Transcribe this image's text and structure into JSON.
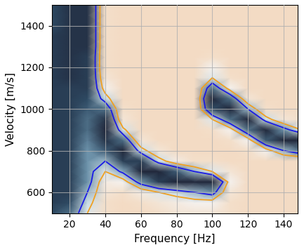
{
  "chart_data": {
    "type": "heatmap",
    "x_label": "Frequency [Hz]",
    "y_label": "Velocity [m/s]",
    "x": [
      10,
      20,
      30,
      40,
      50,
      60,
      70,
      80,
      90,
      100,
      110,
      120,
      130,
      140,
      150
    ],
    "y": [
      500,
      550,
      600,
      650,
      700,
      750,
      800,
      850,
      900,
      950,
      1000,
      1050,
      1100,
      1150,
      1200,
      1250,
      1300,
      1350,
      1400,
      1450,
      1500
    ],
    "cells": [
      [
        0.8,
        0.7,
        0.3,
        0.05,
        0.02,
        0.02,
        0.05,
        0.1,
        0.1,
        0.1,
        0.05,
        0.02,
        0.02,
        0.02,
        0.02
      ],
      [
        0.85,
        0.8,
        0.4,
        0.05,
        0.02,
        0.05,
        0.1,
        0.15,
        0.2,
        0.2,
        0.05,
        0.02,
        0.02,
        0.02,
        0.02
      ],
      [
        0.85,
        0.85,
        0.5,
        0.1,
        0.05,
        0.15,
        0.3,
        0.4,
        0.5,
        0.6,
        0.1,
        0.02,
        0.02,
        0.02,
        0.02
      ],
      [
        0.85,
        0.85,
        0.6,
        0.15,
        0.2,
        0.6,
        0.85,
        0.95,
        0.95,
        0.95,
        0.2,
        0.02,
        0.02,
        0.02,
        0.02
      ],
      [
        0.85,
        0.85,
        0.6,
        0.3,
        0.55,
        0.95,
        0.95,
        0.75,
        0.5,
        0.3,
        0.1,
        0.02,
        0.02,
        0.02,
        0.02
      ],
      [
        0.85,
        0.85,
        0.6,
        0.5,
        0.85,
        0.85,
        0.4,
        0.15,
        0.05,
        0.05,
        0.02,
        0.02,
        0.02,
        0.02,
        0.02
      ],
      [
        0.85,
        0.85,
        0.6,
        0.75,
        0.95,
        0.4,
        0.1,
        0.02,
        0.02,
        0.02,
        0.02,
        0.05,
        0.2,
        0.5,
        0.7
      ],
      [
        0.85,
        0.85,
        0.65,
        0.9,
        0.7,
        0.1,
        0.02,
        0.02,
        0.02,
        0.02,
        0.05,
        0.2,
        0.75,
        0.95,
        0.95
      ],
      [
        0.85,
        0.85,
        0.7,
        0.95,
        0.35,
        0.02,
        0.02,
        0.02,
        0.02,
        0.05,
        0.2,
        0.7,
        0.95,
        0.6,
        0.3
      ],
      [
        0.85,
        0.85,
        0.7,
        0.9,
        0.1,
        0.02,
        0.02,
        0.02,
        0.02,
        0.3,
        0.7,
        0.95,
        0.4,
        0.1,
        0.05
      ],
      [
        0.85,
        0.85,
        0.75,
        0.7,
        0.05,
        0.02,
        0.02,
        0.02,
        0.02,
        0.8,
        0.95,
        0.5,
        0.05,
        0.02,
        0.02
      ],
      [
        0.85,
        0.85,
        0.8,
        0.4,
        0.02,
        0.02,
        0.02,
        0.02,
        0.02,
        0.95,
        0.7,
        0.1,
        0.02,
        0.02,
        0.02
      ],
      [
        0.85,
        0.85,
        0.85,
        0.2,
        0.02,
        0.02,
        0.02,
        0.02,
        0.02,
        0.7,
        0.2,
        0.02,
        0.02,
        0.02,
        0.02
      ],
      [
        0.85,
        0.9,
        0.85,
        0.1,
        0.02,
        0.02,
        0.02,
        0.02,
        0.02,
        0.3,
        0.05,
        0.02,
        0.02,
        0.02,
        0.02
      ],
      [
        0.85,
        0.9,
        0.85,
        0.05,
        0.02,
        0.02,
        0.02,
        0.02,
        0.02,
        0.2,
        0.02,
        0.02,
        0.02,
        0.02,
        0.02
      ],
      [
        0.85,
        0.9,
        0.85,
        0.05,
        0.02,
        0.02,
        0.02,
        0.02,
        0.02,
        0.05,
        0.02,
        0.02,
        0.02,
        0.02,
        0.02
      ],
      [
        0.85,
        0.9,
        0.9,
        0.05,
        0.02,
        0.02,
        0.02,
        0.02,
        0.02,
        0.02,
        0.02,
        0.02,
        0.02,
        0.02,
        0.02
      ],
      [
        0.85,
        0.9,
        0.9,
        0.05,
        0.02,
        0.02,
        0.02,
        0.02,
        0.02,
        0.02,
        0.02,
        0.02,
        0.02,
        0.02,
        0.02
      ],
      [
        0.8,
        0.9,
        0.9,
        0.05,
        0.02,
        0.02,
        0.02,
        0.02,
        0.02,
        0.02,
        0.02,
        0.02,
        0.02,
        0.02,
        0.02
      ],
      [
        0.8,
        0.9,
        0.9,
        0.05,
        0.02,
        0.02,
        0.02,
        0.02,
        0.02,
        0.02,
        0.02,
        0.02,
        0.02,
        0.02,
        0.02
      ],
      [
        0.8,
        0.9,
        0.9,
        0.05,
        0.02,
        0.02,
        0.02,
        0.02,
        0.02,
        0.02,
        0.02,
        0.02,
        0.02,
        0.02,
        0.02
      ]
    ],
    "clim": [
      0,
      1
    ],
    "contour_levels": [
      0.3,
      0.5
    ],
    "colors": [
      "#f0a020",
      "#1a1ae6"
    ],
    "xlim": [
      10,
      148
    ],
    "xticks": [
      20,
      40,
      60,
      80,
      100,
      120,
      140
    ],
    "ylim": [
      500,
      1500
    ],
    "yticks": [
      600,
      800,
      1000,
      1200,
      1400
    ],
    "grid": true
  }
}
